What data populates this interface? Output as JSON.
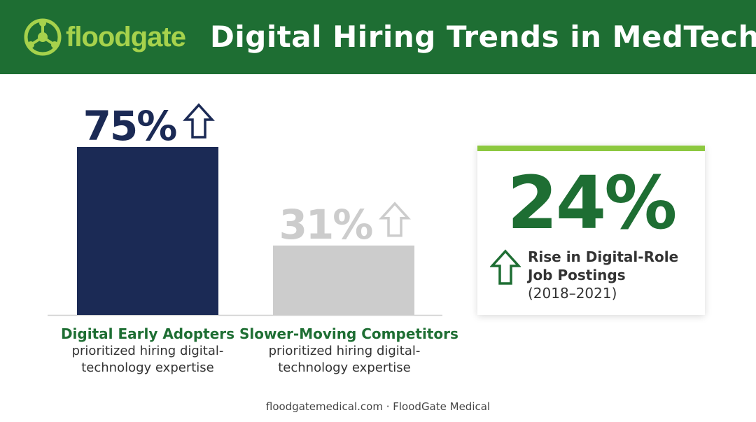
{
  "header": {
    "logo_text": "floodgate",
    "title": "Digital Hiring Trends in MedTech",
    "background_color": "#1e6e33"
  },
  "chart_data": {
    "type": "bar",
    "categories": [
      "Digital Early Adopters",
      "Slower-Moving Competitors"
    ],
    "values": [
      75,
      31
    ],
    "value_labels": [
      "75%",
      "31%"
    ],
    "descriptions": [
      "prioritized hiring digital-technology expertise",
      "prioritized hiring digital-technology expertise"
    ],
    "colors": [
      "#1b2a55",
      "#cccccc"
    ],
    "label_colors": [
      "#1b2a55",
      "#cccccc"
    ],
    "ylim": [
      0,
      100
    ],
    "value_arrow_icon": "up-arrow-icon",
    "grid": false,
    "title": "",
    "xlabel": "",
    "ylabel": ""
  },
  "stat_card": {
    "value": "24%",
    "label_line1": "Rise in Digital-Role",
    "label_line2": "Job Postings",
    "period": "(2018–2021)",
    "icon": "up-arrow-icon",
    "accent_color": "#8cc83f",
    "value_color": "#1e6e33"
  },
  "footer": {
    "text": "floodgatemedical.com · FloodGate Medical"
  }
}
